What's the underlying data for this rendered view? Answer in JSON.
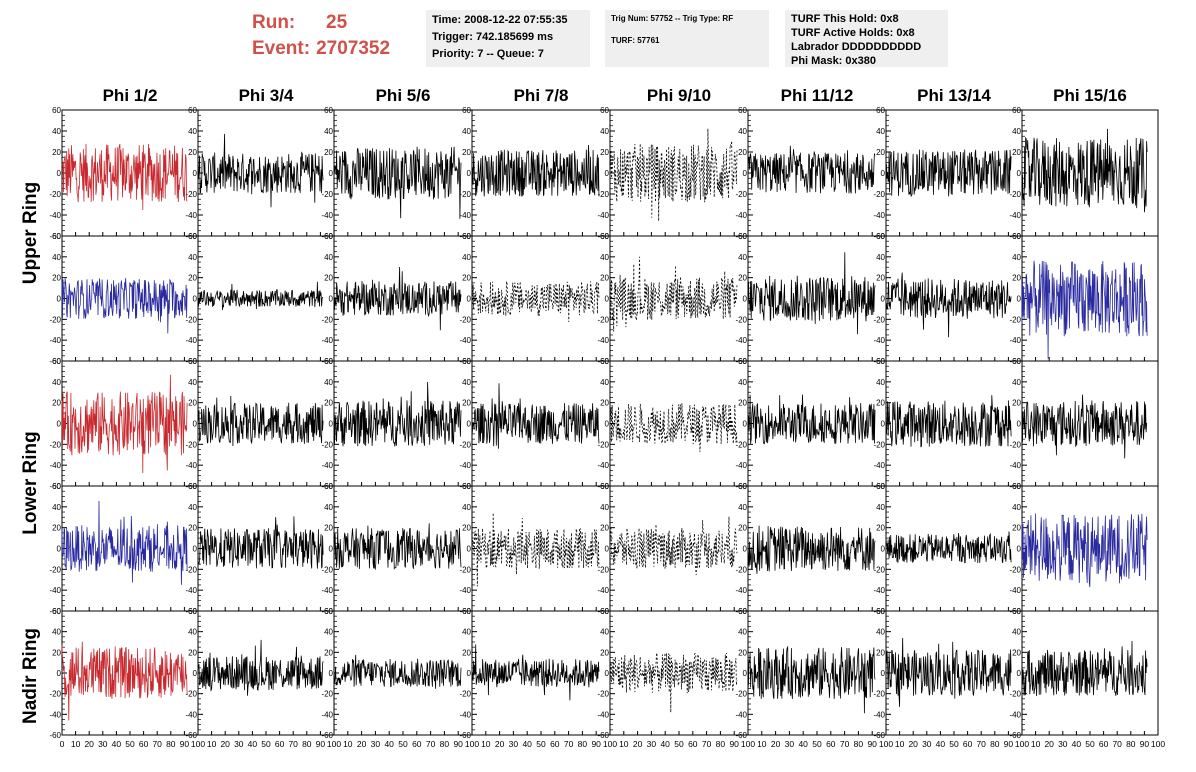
{
  "header": {
    "run_label": "Run:",
    "run_value": "25",
    "event_label": "Event:",
    "event_value": "2707352",
    "run_color": "#d0504a"
  },
  "info_time": {
    "line1": "Time: 2008-12-22 07:55:35",
    "line2": "Trigger: 742.185699 ms",
    "line3": "Priority: 7 -- Queue: 7"
  },
  "info_trig": {
    "line1": "Trig Num: 57752 -- Trig Type: RF",
    "line2": "TURF: 57761"
  },
  "info_turf": {
    "line1": "TURF This Hold: 0x8",
    "line2": "TURF Active Holds: 0x8",
    "line3": "Labrador DDDDDDDDDD",
    "line4": "Phi Mask: 0x380"
  },
  "chart_data": {
    "type": "line",
    "columns": [
      "Phi 1/2",
      "Phi 3/4",
      "Phi 5/6",
      "Phi 7/8",
      "Phi 9/10",
      "Phi 11/12",
      "Phi 13/14",
      "Phi 15/16"
    ],
    "ring_labels": [
      "Upper Ring",
      "Lower Ring",
      "Nadir Ring"
    ],
    "rows": 5,
    "xlim": [
      0,
      100
    ],
    "ylim": [
      -60,
      60
    ],
    "x_ticks": [
      0,
      10,
      20,
      30,
      40,
      50,
      60,
      70,
      80,
      90,
      100
    ],
    "y_ticks": [
      -60,
      -40,
      -20,
      0,
      20,
      40,
      60
    ],
    "colors": {
      "red": "#c8292e",
      "blue": "#2a2aa0",
      "black": "#000000"
    },
    "panels": [
      [
        "red",
        "black",
        "black",
        "black",
        "dotted",
        "black",
        "black",
        "black"
      ],
      [
        "blue",
        "black",
        "black",
        "dotted",
        "dotted",
        "black",
        "black",
        "blue"
      ],
      [
        "red",
        "black",
        "black",
        "black",
        "dotted",
        "black",
        "black",
        "black"
      ],
      [
        "blue",
        "black",
        "black",
        "dotted",
        "dotted",
        "black",
        "black",
        "blue"
      ],
      [
        "red",
        "black",
        "black",
        "black",
        "dotted",
        "black",
        "black",
        "black"
      ]
    ],
    "amplitudes": [
      [
        20,
        14,
        18,
        16,
        20,
        14,
        16,
        24
      ],
      [
        14,
        6,
        12,
        12,
        15,
        16,
        14,
        26
      ],
      [
        22,
        14,
        16,
        14,
        14,
        14,
        16,
        16
      ],
      [
        16,
        14,
        14,
        14,
        14,
        16,
        10,
        24
      ],
      [
        18,
        12,
        10,
        10,
        14,
        18,
        16,
        16
      ]
    ]
  }
}
